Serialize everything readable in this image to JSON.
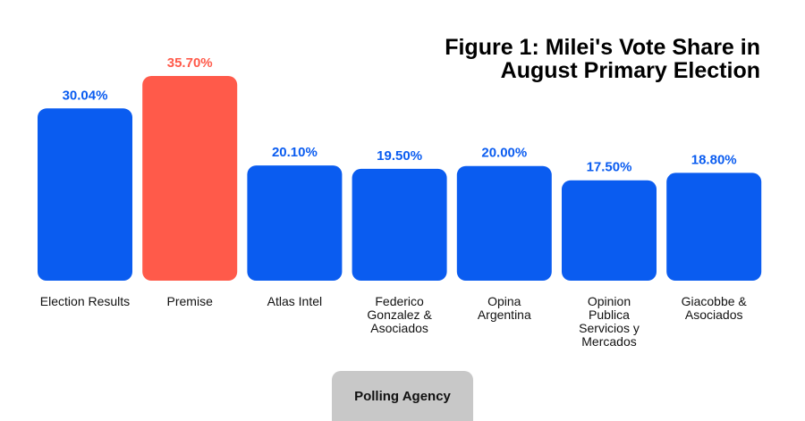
{
  "chart_data": {
    "type": "bar",
    "title": "Figure 1: Milei's Vote Share in August Primary Election",
    "xlabel": "Polling Agency",
    "ylabel": "",
    "ylim": [
      0,
      40
    ],
    "grid": false,
    "categories": [
      [
        "Election Results"
      ],
      [
        "Premise"
      ],
      [
        "Atlas Intel"
      ],
      [
        "Federico",
        "Gonzalez &",
        "Asociados"
      ],
      [
        "Opina",
        "Argentina"
      ],
      [
        "Opinion",
        "Publica",
        "Servicios y",
        "Mercados"
      ],
      [
        "Giacobbe &",
        "Asociados"
      ]
    ],
    "values": [
      30.04,
      35.7,
      20.1,
      19.5,
      20.0,
      17.5,
      18.8
    ],
    "value_labels": [
      "30.04%",
      "35.70%",
      "20.10%",
      "19.50%",
      "20.00%",
      "17.50%",
      "18.80%"
    ],
    "colors": [
      "#0a5cf0",
      "#ff5a4a",
      "#0a5cf0",
      "#0a5cf0",
      "#0a5cf0",
      "#0a5cf0",
      "#0a5cf0"
    ]
  }
}
